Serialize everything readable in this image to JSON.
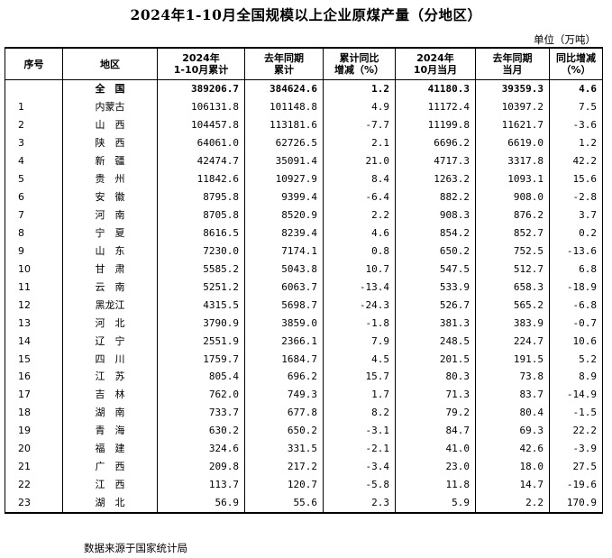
{
  "title": "2024年1-10月全国规模以上企业原煤产量（分地区）",
  "unit": "单位（万吨）",
  "headers": [
    [
      "序号"
    ],
    [
      "地区"
    ],
    [
      "2024年",
      "1-10月累计"
    ],
    [
      "去年同期",
      "累计"
    ],
    [
      "累计同比",
      "增减（%）"
    ],
    [
      "2024年",
      "10月当月"
    ],
    [
      "去年同期",
      "当月"
    ],
    [
      "同比增减",
      "（%）"
    ]
  ],
  "rows": [
    [
      "",
      "全　国",
      "389206.7",
      "384624.6",
      "1.2",
      "41180.3",
      "39359.3",
      "4.6"
    ],
    [
      "1",
      "内蒙古",
      "106131.8",
      "101148.8",
      "4.9",
      "11172.4",
      "10397.2",
      "7.5"
    ],
    [
      "2",
      "山　西",
      "104457.8",
      "113181.6",
      "-7.7",
      "11199.8",
      "11621.7",
      "-3.6"
    ],
    [
      "3",
      "陕　西",
      "64061.0",
      "62726.5",
      "2.1",
      "6696.2",
      "6619.0",
      "1.2"
    ],
    [
      "4",
      "新　疆",
      "42474.7",
      "35091.4",
      "21.0",
      "4717.3",
      "3317.8",
      "42.2"
    ],
    [
      "5",
      "贵　州",
      "11842.6",
      "10927.9",
      "8.4",
      "1263.2",
      "1093.1",
      "15.6"
    ],
    [
      "6",
      "安　徽",
      "8795.8",
      "9399.4",
      "-6.4",
      "882.2",
      "908.0",
      "-2.8"
    ],
    [
      "7",
      "河　南",
      "8705.8",
      "8520.9",
      "2.2",
      "908.3",
      "876.2",
      "3.7"
    ],
    [
      "8",
      "宁　夏",
      "8616.5",
      "8239.4",
      "4.6",
      "854.2",
      "852.7",
      "0.2"
    ],
    [
      "9",
      "山　东",
      "7230.0",
      "7174.1",
      "0.8",
      "650.2",
      "752.5",
      "-13.6"
    ],
    [
      "10",
      "甘　肃",
      "5585.2",
      "5043.8",
      "10.7",
      "547.5",
      "512.7",
      "6.8"
    ],
    [
      "11",
      "云　南",
      "5251.2",
      "6063.7",
      "-13.4",
      "533.9",
      "658.3",
      "-18.9"
    ],
    [
      "12",
      "黑龙江",
      "4315.5",
      "5698.7",
      "-24.3",
      "526.7",
      "565.2",
      "-6.8"
    ],
    [
      "13",
      "河　北",
      "3790.9",
      "3859.0",
      "-1.8",
      "381.3",
      "383.9",
      "-0.7"
    ],
    [
      "14",
      "辽　宁",
      "2551.9",
      "2366.1",
      "7.9",
      "248.5",
      "224.7",
      "10.6"
    ],
    [
      "15",
      "四　川",
      "1759.7",
      "1684.7",
      "4.5",
      "201.5",
      "191.5",
      "5.2"
    ],
    [
      "16",
      "江　苏",
      "805.4",
      "696.2",
      "15.7",
      "80.3",
      "73.8",
      "8.9"
    ],
    [
      "17",
      "吉　林",
      "762.0",
      "749.3",
      "1.7",
      "71.3",
      "83.7",
      "-14.9"
    ],
    [
      "18",
      "湖　南",
      "733.7",
      "677.8",
      "8.2",
      "79.2",
      "80.4",
      "-1.5"
    ],
    [
      "19",
      "青　海",
      "630.2",
      "650.2",
      "-3.1",
      "84.7",
      "69.3",
      "22.2"
    ],
    [
      "20",
      "福　建",
      "324.6",
      "331.5",
      "-2.1",
      "41.0",
      "42.6",
      "-3.9"
    ],
    [
      "21",
      "广　西",
      "209.8",
      "217.2",
      "-3.4",
      "23.0",
      "18.0",
      "27.5"
    ],
    [
      "22",
      "江　西",
      "113.7",
      "120.7",
      "-5.8",
      "11.8",
      "14.7",
      "-19.6"
    ],
    [
      "23",
      "湖　北",
      "56.9",
      "55.6",
      "2.3",
      "5.9",
      "2.2",
      "170.9"
    ]
  ],
  "source": "数据来源于国家统计局"
}
